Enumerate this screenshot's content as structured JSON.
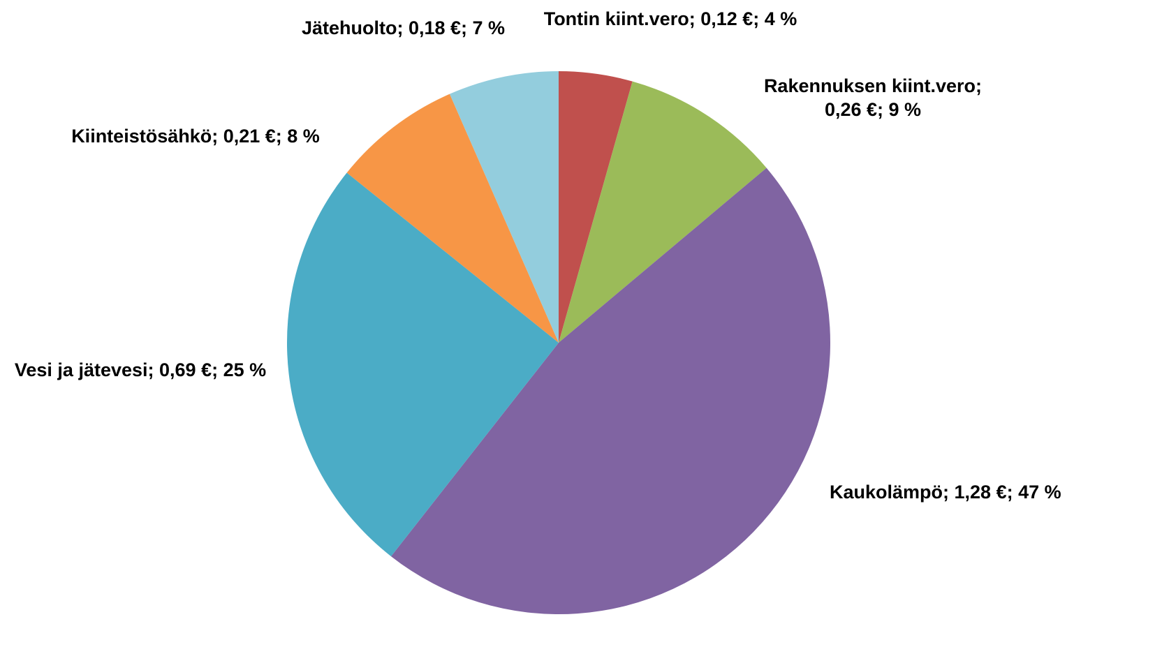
{
  "chart_data": {
    "type": "pie",
    "values": [
      0.12,
      0.26,
      1.28,
      0.69,
      0.21,
      0.18
    ],
    "value_labels": [
      "Tontin kiint.vero; 0,12 €; 4 %",
      "Rakennuksen kiint.vero; 0,26 €; 9 %",
      "Kaukolämpö; 1,28 €; 47 %",
      "Vesi ja jätevesi; 0,69 €; 25 %",
      "Kiinteistösähkö; 0,21 €; 8 %",
      "Jätehuolto; 0,18 €; 7 %"
    ],
    "colors": [
      "#c0504d",
      "#9bbb59",
      "#8064a2",
      "#4bacc6",
      "#f79646",
      "#93cddd"
    ]
  }
}
